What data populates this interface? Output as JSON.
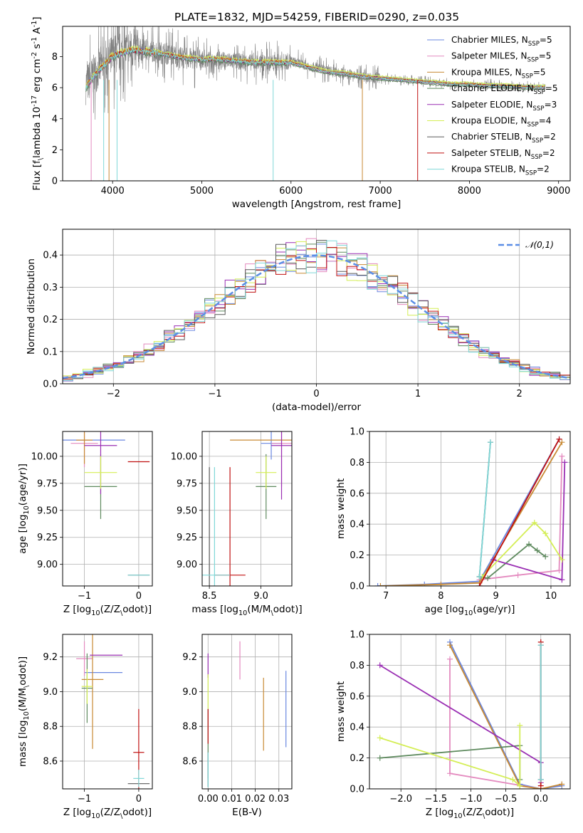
{
  "figure_title": "PLATE=1832, MJD=54259, FIBERID=0290, z=0.035",
  "models": [
    {
      "color": "#6a87e0",
      "label": "Chabrier MILES, N$_{SSP}$=5"
    },
    {
      "color": "#e48abf",
      "label": "Salpeter MILES, N$_{SSP}$=5"
    },
    {
      "color": "#c88a34",
      "label": "Kroupa MILES, N$_{SSP}$=5"
    },
    {
      "color": "#5e8a5e",
      "label": "Chabrier ELODIE, N$_{SSP}$=5"
    },
    {
      "color": "#9a2fb3",
      "label": "Salpeter ELODIE, N$_{SSP}$=3"
    },
    {
      "color": "#d4ee55",
      "label": "Kroupa ELODIE, N$_{SSP}$=4"
    },
    {
      "color": "#5a5a5a",
      "label": "Chabrier STELIB, N$_{SSP}$=2"
    },
    {
      "color": "#c01010",
      "label": "Salpeter STELIB, N$_{SSP}$=2"
    },
    {
      "color": "#7fd8d8",
      "label": "Kroupa STELIB, N$_{SSP}$=2"
    }
  ],
  "chart_data": [
    {
      "id": "spectrum",
      "type": "line",
      "xlabel": "wavelength [Angstrom, rest frame]",
      "ylabel": "Flux [$f_\\lambda 10^{-17}$ erg cm$^{-2}$ s$^{-1}$ A$^{-1}$]",
      "xlim": [
        3440,
        9130
      ],
      "ylim": [
        0,
        9.95
      ],
      "xticks": [
        4000,
        5000,
        6000,
        7000,
        8000,
        9000
      ],
      "yticks": [
        0,
        2,
        4,
        6,
        8
      ],
      "grid": false,
      "legend_position": "right",
      "series": [
        {
          "name": "data",
          "color": "#808080",
          "x": [
            3700,
            3800,
            3900,
            4000,
            4200,
            4400,
            4600,
            4800,
            5000,
            5200,
            5400,
            5600,
            5800,
            6000,
            6200,
            6400,
            6600,
            6800,
            7000,
            7200,
            7400,
            7600,
            7800,
            8000,
            8200,
            8400,
            8600,
            8800
          ],
          "y": [
            6.2,
            6.9,
            7.6,
            8.1,
            8.5,
            8.4,
            8.2,
            7.9,
            7.8,
            7.8,
            7.7,
            7.6,
            7.6,
            7.7,
            7.4,
            7.1,
            6.9,
            6.7,
            6.6,
            6.5,
            6.4,
            6.4,
            6.2,
            6.2,
            6.2,
            6.1,
            6.1,
            6.0
          ]
        },
        {
          "name": "model",
          "color": "#7fd8d8",
          "x": [
            3700,
            3800,
            3900,
            4000,
            4200,
            4400,
            4600,
            4800,
            5000,
            5200,
            5400,
            5600,
            5800,
            6000,
            6200,
            6400,
            6600,
            6800,
            7000,
            7200,
            7400,
            7600,
            7800,
            8000,
            8200,
            8400,
            8600,
            8800
          ],
          "y": [
            6.0,
            6.8,
            7.4,
            8.0,
            8.4,
            8.3,
            8.1,
            7.9,
            7.8,
            7.8,
            7.7,
            7.6,
            7.6,
            7.6,
            7.3,
            7.0,
            6.9,
            6.7,
            6.6,
            6.5,
            6.4,
            6.3,
            6.2,
            6.2,
            6.1,
            6.1,
            6.0,
            6.0
          ]
        }
      ]
    },
    {
      "id": "residuals",
      "type": "line",
      "xlabel": "(data-model)/error",
      "ylabel": "Normed distribution",
      "xlim": [
        -2.5,
        2.5
      ],
      "ylim": [
        0,
        0.48
      ],
      "xticks": [
        -2,
        -1,
        0,
        1,
        2
      ],
      "yticks": [
        0.0,
        0.1,
        0.2,
        0.3,
        0.4
      ],
      "grid": true,
      "legend_position": "top-right",
      "reference": {
        "name": "$\\mathcal{N}(0,1)$",
        "color": "#5b8ee6",
        "mu": 0,
        "sigma": 1
      }
    },
    {
      "id": "age-vs-Z",
      "type": "scatter",
      "xlabel": "Z [log$_{10}$($Z/Z_\\odot$)]",
      "ylabel": "age  [log$_{10}$($age/yr$)]",
      "xlim": [
        -1.4,
        0.25
      ],
      "ylim": [
        8.8,
        10.23
      ],
      "xticks": [
        -1,
        0
      ],
      "yticks": [
        9.0,
        9.25,
        9.5,
        9.75,
        10.0
      ],
      "grid": true,
      "errorbars": [
        {
          "x": -1.0,
          "xerr": 0.75,
          "y": 10.15,
          "yerr": 0.0
        },
        {
          "x": -1.0,
          "xerr": 0.25,
          "y": 10.12,
          "yerr": 0.22
        },
        {
          "x": -1.0,
          "xerr": 0.15,
          "y": 10.15,
          "yerr": 0.22
        },
        {
          "x": -0.7,
          "xerr": 0.3,
          "y": 9.72,
          "yerr": 0.3
        },
        {
          "x": -0.7,
          "xerr": 0.3,
          "y": 10.1,
          "yerr": 0.45
        },
        {
          "x": -0.7,
          "xerr": 0.3,
          "y": 9.85,
          "yerr": 0.15
        },
        {
          "x": 0.0,
          "xerr": 0.2,
          "y": 8.9,
          "yerr": 0.0
        },
        {
          "x": 0.0,
          "xerr": 0.2,
          "y": 9.95,
          "yerr": 0.0
        },
        {
          "x": 0.0,
          "xerr": 0.2,
          "y": 8.9,
          "yerr": 0.0
        }
      ]
    },
    {
      "id": "age-vs-mass",
      "type": "scatter",
      "xlabel": "mass [log$_{10}$($M/M_\\odot$)]",
      "ylabel": "",
      "xlim": [
        8.43,
        9.3
      ],
      "ylim": [
        8.8,
        10.23
      ],
      "xticks": [
        8.5,
        9.0
      ],
      "yticks": [
        9.0,
        9.25,
        9.5,
        9.75,
        10.0
      ],
      "grid": true,
      "errorbars": [
        {
          "x": 9.1,
          "xerr": 0.1,
          "y": 10.12,
          "yerr": 0.15
        },
        {
          "x": 9.2,
          "xerr": 0.1,
          "y": 10.12,
          "yerr": 0.4
        },
        {
          "x": 9.05,
          "xerr": 0.35,
          "y": 10.15,
          "yerr": 0.0
        },
        {
          "x": 9.05,
          "xerr": 0.1,
          "y": 9.72,
          "yerr": 0.3
        },
        {
          "x": 9.2,
          "xerr": 0.1,
          "y": 10.1,
          "yerr": 0.5
        },
        {
          "x": 9.05,
          "xerr": 0.1,
          "y": 9.85,
          "yerr": 0.15
        },
        {
          "x": 8.5,
          "xerr": 0.0,
          "y": 8.9,
          "yerr": 1.0
        },
        {
          "x": 8.7,
          "xerr": 0.15,
          "y": 8.9,
          "yerr": 1.0
        },
        {
          "x": 8.55,
          "xerr": 0.15,
          "y": 8.9,
          "yerr": 1.0
        }
      ]
    },
    {
      "id": "weight-vs-age",
      "type": "line",
      "xlabel": "age  [log$_{10}$($age/yr$)]",
      "ylabel": "mass weight",
      "xlim": [
        6.7,
        10.35
      ],
      "ylim": [
        0,
        1.0
      ],
      "xticks": [
        7,
        8,
        9,
        10
      ],
      "yticks": [
        0.0,
        0.2,
        0.4,
        0.6,
        0.8,
        1.0
      ],
      "grid": true,
      "series": [
        {
          "x": [
            6.85,
            7.7,
            8.7,
            10.15
          ],
          "y": [
            0.0,
            0.01,
            0.03,
            0.95
          ]
        },
        {
          "x": [
            8.7,
            9.4,
            10.15,
            10.2
          ],
          "y": [
            0.04,
            0.07,
            0.1,
            0.84
          ]
        },
        {
          "x": [
            6.9,
            8.0,
            8.7,
            10.2
          ],
          "y": [
            0.0,
            0.01,
            0.02,
            0.93
          ]
        },
        {
          "x": [
            8.7,
            8.85,
            9.6,
            9.75,
            9.9
          ],
          "y": [
            0.06,
            0.05,
            0.27,
            0.23,
            0.19
          ]
        },
        {
          "x": [
            8.95,
            10.2,
            10.25
          ],
          "y": [
            0.17,
            0.04,
            0.8
          ]
        },
        {
          "x": [
            8.75,
            9.7,
            9.9,
            10.2
          ],
          "y": [
            0.06,
            0.41,
            0.34,
            0.17
          ]
        },
        {
          "x": [
            8.7,
            8.9
          ],
          "y": [
            0.06,
            0.93
          ]
        },
        {
          "x": [
            8.7,
            10.15
          ],
          "y": [
            0.0,
            0.95
          ]
        },
        {
          "x": [
            8.7,
            8.9
          ],
          "y": [
            0.06,
            0.93
          ]
        }
      ]
    },
    {
      "id": "mass-vs-Z",
      "type": "scatter",
      "xlabel": "Z [log$_{10}$($Z/Z_\\odot$)]",
      "ylabel": "mass [log$_{10}$($M/M_\\odot$)]",
      "xlim": [
        -1.4,
        0.25
      ],
      "ylim": [
        8.44,
        9.33
      ],
      "xticks": [
        -1,
        0
      ],
      "yticks": [
        8.6,
        8.8,
        9.0,
        9.2
      ],
      "grid": true,
      "errorbars": [
        {
          "x": -0.65,
          "xerr": 0.35,
          "y": 9.11,
          "yerr": 0.0
        },
        {
          "x": -1.0,
          "xerr": 0.15,
          "y": 9.19,
          "yerr": 0.1
        },
        {
          "x": -0.85,
          "xerr": 0.2,
          "y": 9.07,
          "yerr": 0.4
        },
        {
          "x": -0.95,
          "xerr": 0.1,
          "y": 9.02,
          "yerr": 0.2
        },
        {
          "x": -0.6,
          "xerr": 0.3,
          "y": 9.21,
          "yerr": 0.0
        },
        {
          "x": -0.95,
          "xerr": 0.1,
          "y": 9.03,
          "yerr": 0.1
        },
        {
          "x": 0.0,
          "xerr": 0.2,
          "y": 8.47,
          "yerr": 0.0
        },
        {
          "x": 0.0,
          "xerr": 0.1,
          "y": 8.65,
          "yerr": 0.25
        },
        {
          "x": 0.0,
          "xerr": 0.1,
          "y": 8.5,
          "yerr": 0.05
        }
      ]
    },
    {
      "id": "mass-vs-EBV",
      "type": "scatter",
      "xlabel": "E(B-V)",
      "ylabel": "",
      "xlim": [
        -0.0025,
        0.0355
      ],
      "ylim": [
        8.44,
        9.33
      ],
      "xticks": [
        0.0,
        0.01,
        0.02,
        0.03
      ],
      "yticks": [
        8.6,
        8.8,
        9.0,
        9.2
      ],
      "grid": true,
      "errorbars": [
        {
          "x": 0.033,
          "xerr": 0.0,
          "y": 8.9,
          "yerr": 0.22
        },
        {
          "x": 0.0135,
          "xerr": 0.0,
          "y": 9.18,
          "yerr": 0.11
        },
        {
          "x": 0.0235,
          "xerr": 0.0,
          "y": 8.87,
          "yerr": 0.21
        },
        {
          "x": 0.0,
          "xerr": 0.0,
          "y": 8.7,
          "yerr": 0.2
        },
        {
          "x": 0.0,
          "xerr": 0.0,
          "y": 9.15,
          "yerr": 0.07
        },
        {
          "x": 0.0,
          "xerr": 0.0,
          "y": 9.0,
          "yerr": 0.1
        },
        {
          "x": 0.0,
          "xerr": 0.0,
          "y": 8.55,
          "yerr": 0.1
        },
        {
          "x": 0.0,
          "xerr": 0.0,
          "y": 8.8,
          "yerr": 0.1
        },
        {
          "x": 0.0,
          "xerr": 0.0,
          "y": 8.55,
          "yerr": 0.1
        }
      ]
    },
    {
      "id": "weight-vs-Z",
      "type": "line",
      "xlabel": "Z [log$_{10}$($Z/Z_\\odot$)]",
      "ylabel": "mass weight",
      "xlim": [
        -2.45,
        0.42
      ],
      "ylim": [
        0,
        1.0
      ],
      "xticks": [
        -2.0,
        -1.5,
        -1.0,
        -0.5,
        0.0
      ],
      "yticks": [
        0.0,
        0.2,
        0.4,
        0.6,
        0.8,
        1.0
      ],
      "grid": true,
      "series": [
        {
          "x": [
            -1.3,
            -0.3,
            0.0,
            0.3
          ],
          "y": [
            0.95,
            0.03,
            0.0,
            0.02
          ]
        },
        {
          "x": [
            -1.3,
            -1.3,
            0.0
          ],
          "y": [
            0.84,
            0.1,
            0.0
          ]
        },
        {
          "x": [
            -1.3,
            -0.3,
            0.0,
            0.3
          ],
          "y": [
            0.93,
            0.02,
            0.0,
            0.03
          ]
        },
        {
          "x": [
            -2.3,
            -0.3,
            -0.3
          ],
          "y": [
            0.2,
            0.28,
            0.06
          ]
        },
        {
          "x": [
            -2.3,
            0.0,
            0.0
          ],
          "y": [
            0.8,
            0.17,
            0.04
          ]
        },
        {
          "x": [
            -2.3,
            -0.4,
            -0.3,
            -0.3
          ],
          "y": [
            0.33,
            0.06,
            0.02,
            0.41
          ]
        },
        {
          "x": [
            0.0,
            0.0
          ],
          "y": [
            0.06,
            0.93
          ]
        },
        {
          "x": [
            0.0,
            0.0
          ],
          "y": [
            0.02,
            0.95
          ]
        },
        {
          "x": [
            0.0,
            0.0
          ],
          "y": [
            0.06,
            0.93
          ]
        }
      ]
    }
  ]
}
